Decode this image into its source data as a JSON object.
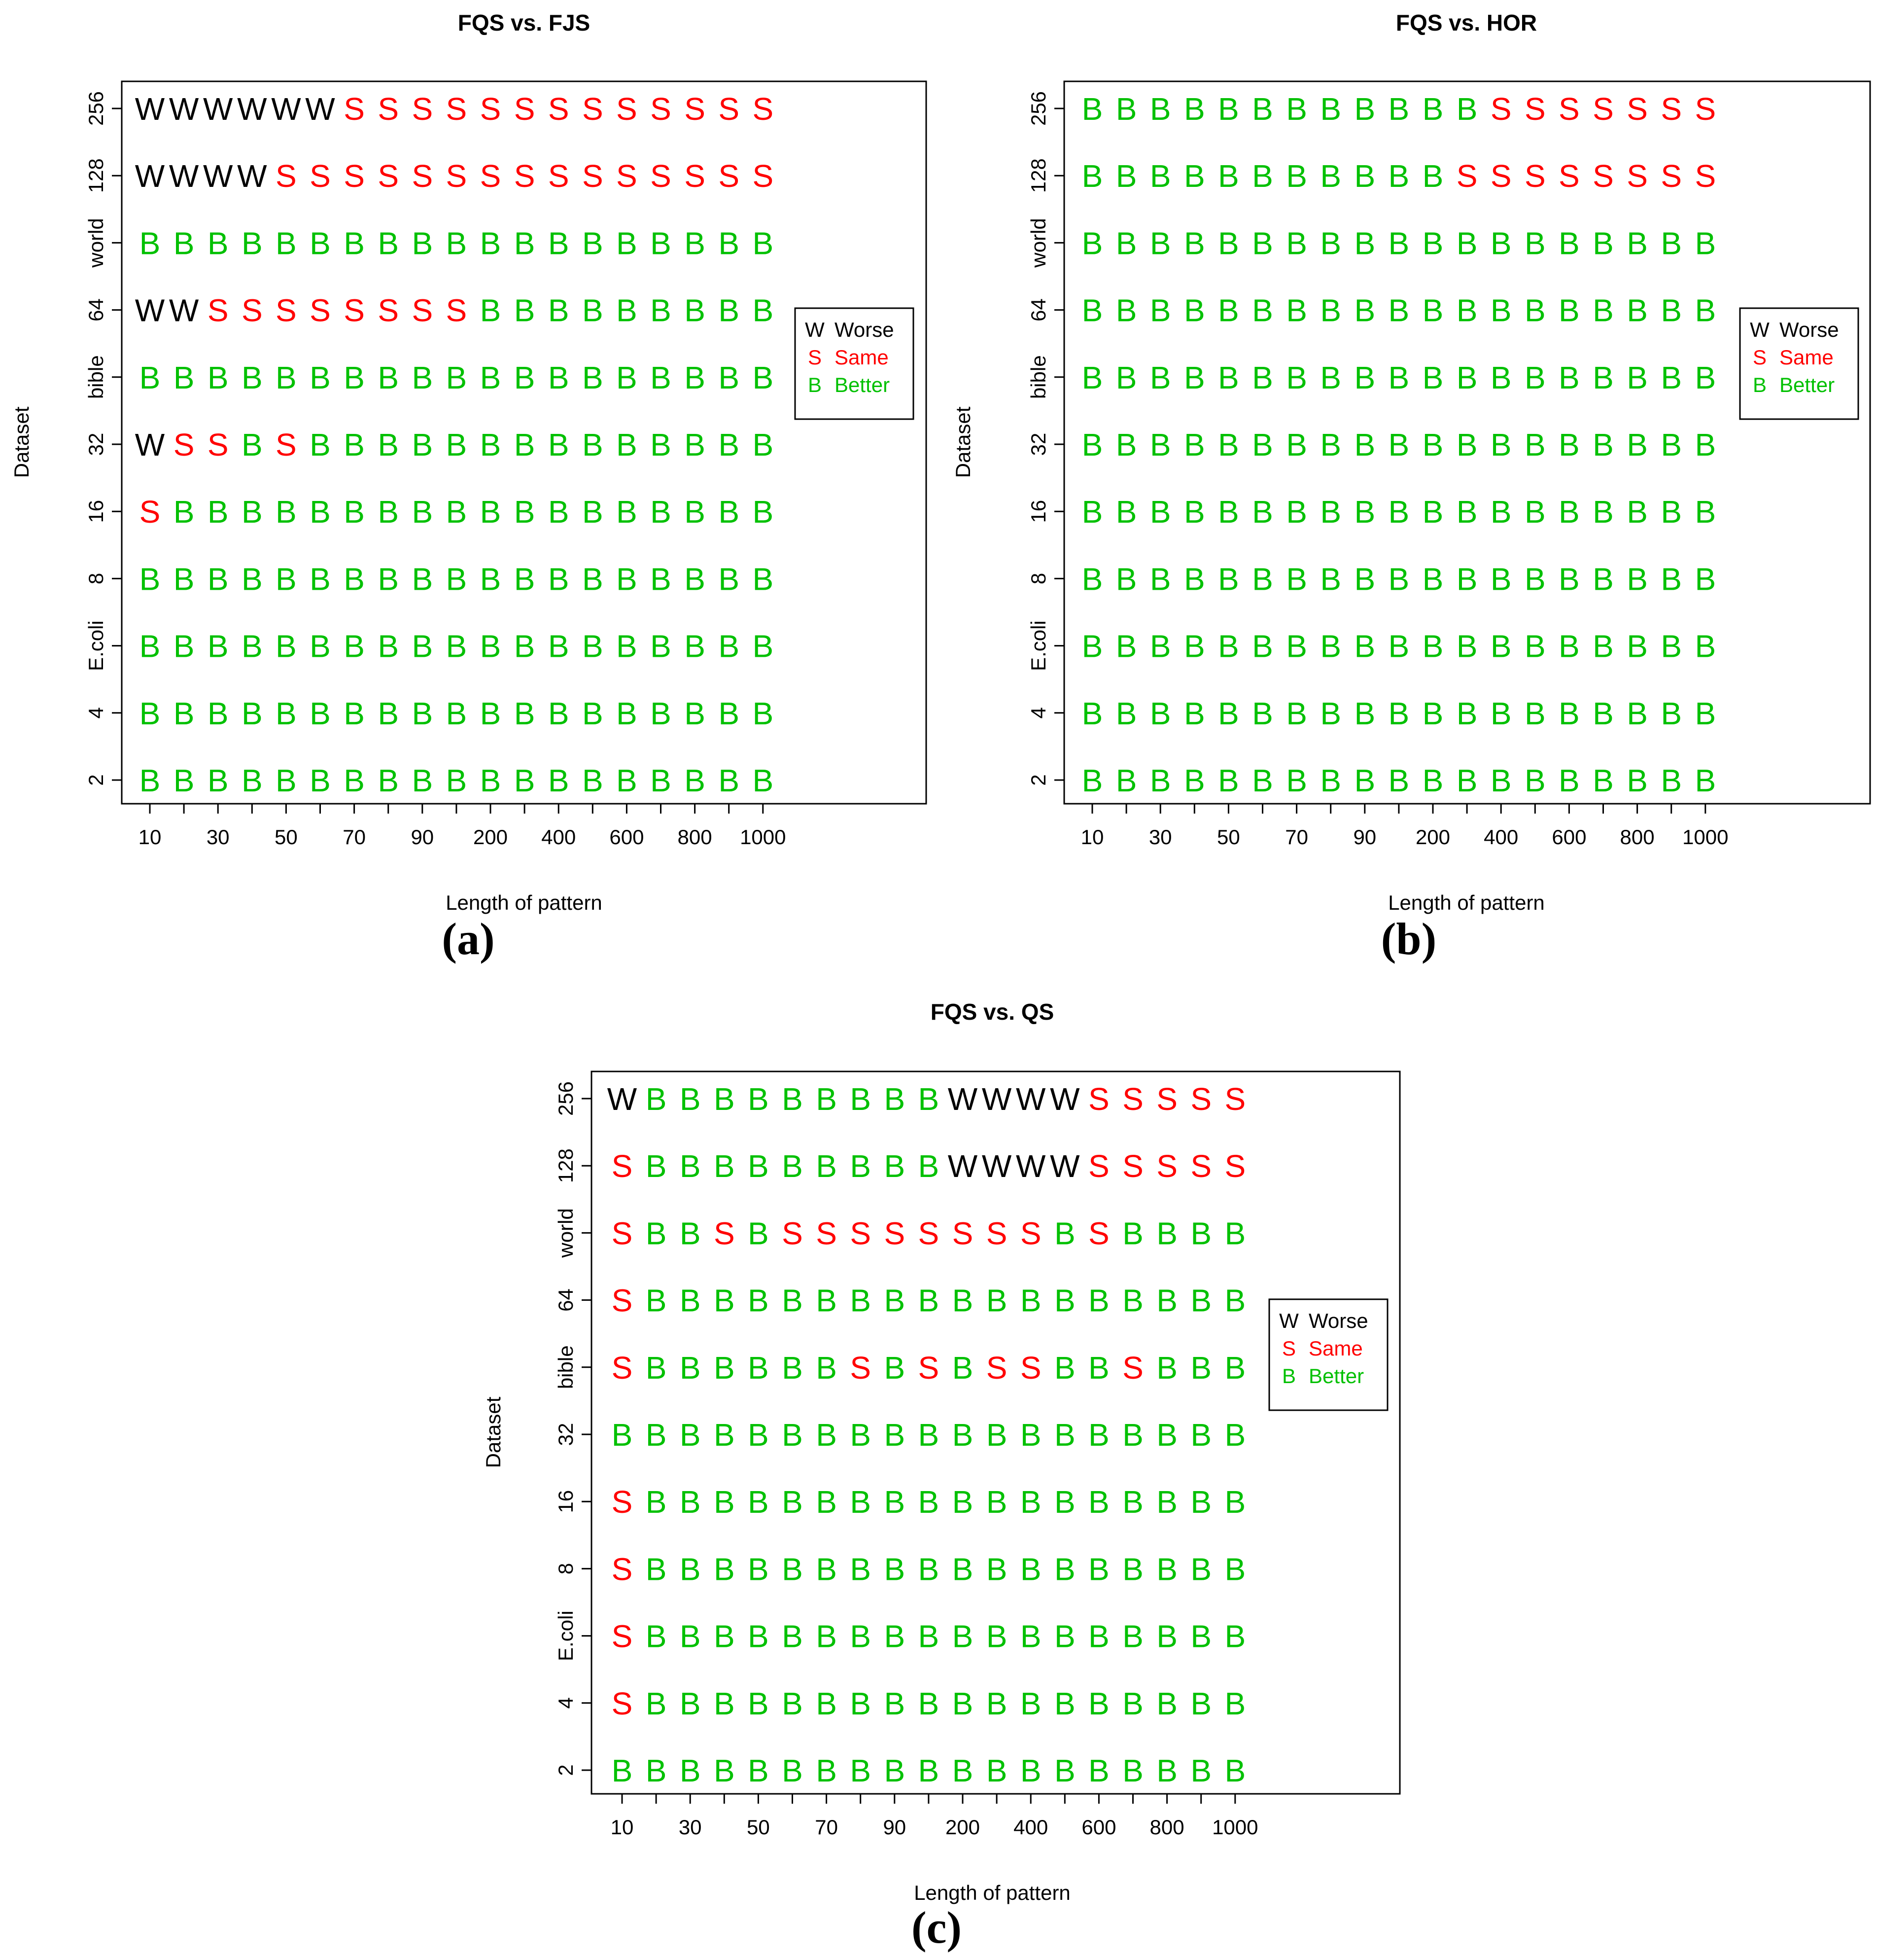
{
  "legend": {
    "items": [
      {
        "code": "W",
        "label": "Worse",
        "color": "#000000"
      },
      {
        "code": "S",
        "label": "Same",
        "color": "#ff0000"
      },
      {
        "code": "B",
        "label": "Better",
        "color": "#00c000"
      }
    ]
  },
  "chart_data": [
    {
      "type": "table",
      "panel": "(a)",
      "title": "FQS vs. FJS",
      "xlabel": "Length of pattern",
      "ylabel": "Dataset",
      "x_ticklabels": [
        "10",
        "30",
        "50",
        "70",
        "90",
        "200",
        "400",
        "600",
        "800",
        "1000"
      ],
      "y_categories": [
        "2",
        "4",
        "E.coli",
        "8",
        "16",
        "32",
        "bible",
        "64",
        "world",
        "128",
        "256"
      ],
      "rows": [
        "BBBBBBBBBBBBBBBBBBB",
        "BBBBBBBBBBBBBBBBBBB",
        "BBBBBBBBBBBBBBBBBBB",
        "BBBBBBBBBBBBBBBBBBB",
        "SBBBBBBBBBBBBBBBBBB",
        "WSSBSBBBBBBBBBBBBBB",
        "BBBBBBBBBBBBBBBBBBB",
        "WWSSSSSSSSBBBBBBBBB",
        "BBBBBBBBBBBBBBBBBBB",
        "WWWWSSSSSSSSSSSSSSS",
        "WWWWWWSSSSSSSSSSSSS"
      ]
    },
    {
      "type": "table",
      "panel": "(b)",
      "title": "FQS vs. HOR",
      "xlabel": "Length of pattern",
      "ylabel": "Dataset",
      "x_ticklabels": [
        "10",
        "30",
        "50",
        "70",
        "90",
        "200",
        "400",
        "600",
        "800",
        "1000"
      ],
      "y_categories": [
        "2",
        "4",
        "E.coli",
        "8",
        "16",
        "32",
        "bible",
        "64",
        "world",
        "128",
        "256"
      ],
      "rows": [
        "BBBBBBBBBBBBBBBBBBB",
        "BBBBBBBBBBBBBBBBBBB",
        "BBBBBBBBBBBBBBBBBBB",
        "BBBBBBBBBBBBBBBBBBB",
        "BBBBBBBBBBBBBBBBBBB",
        "BBBBBBBBBBBBBBBBBBB",
        "BBBBBBBBBBBBBBBBBBB",
        "BBBBBBBBBBBBBBBBBBB",
        "BBBBBBBBBBBBBBBBBBB",
        "BBBBBBBBBBBSSSSSSSS",
        "BBBBBBBBBBBBSSSSSSS"
      ]
    },
    {
      "type": "table",
      "panel": "(c)",
      "title": "FQS vs. QS",
      "xlabel": "Length of pattern",
      "ylabel": "Dataset",
      "x_ticklabels": [
        "10",
        "30",
        "50",
        "70",
        "90",
        "200",
        "400",
        "600",
        "800",
        "1000"
      ],
      "y_categories": [
        "2",
        "4",
        "E.coli",
        "8",
        "16",
        "32",
        "bible",
        "64",
        "world",
        "128",
        "256"
      ],
      "rows": [
        "BBBBBBBBBBBBBBBBBBB",
        "SBBBBBBBBBBBBBBBBBB",
        "SBBBBBBBBBBBBBBBBBB",
        "SBBBBBBBBBBBBBBBBBB",
        "SBBBBBBBBBBBBBBBBBB",
        "BBBBBBBBBBBBBBBBBBB",
        "SBBBBBBSBSBSSBBSBBB",
        "SBBBBBBBBBBBBBBBBBB",
        "SBBSBSSSSSSSSBSBBBB",
        "SBBBBBBBBBWWWWSSSSS",
        "WBBBBBBBBBWWWWSSSSS"
      ]
    }
  ]
}
